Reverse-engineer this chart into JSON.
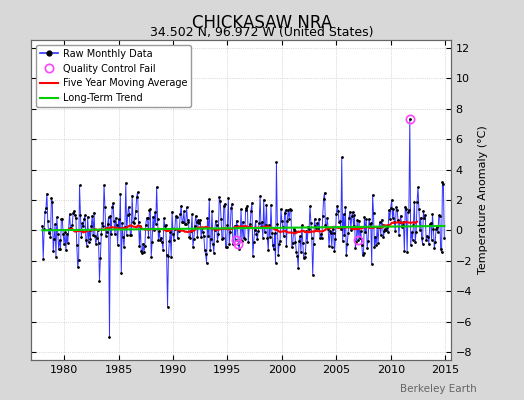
{
  "title": "CHICKASAW NRA",
  "subtitle": "34.502 N, 96.972 W (United States)",
  "ylabel": "Temperature Anomaly (°C)",
  "watermark": "Berkeley Earth",
  "xlim": [
    1977.0,
    2015.5
  ],
  "ylim": [
    -8.5,
    12.5
  ],
  "yticks": [
    -8,
    -6,
    -4,
    -2,
    0,
    2,
    4,
    6,
    8,
    10,
    12
  ],
  "xticks": [
    1980,
    1985,
    1990,
    1995,
    2000,
    2005,
    2010,
    2015
  ],
  "raw_color": "#3333FF",
  "ma_color": "#FF0000",
  "trend_color": "#00CC00",
  "qc_color": "#FF44FF",
  "bg_color": "#D8D8D8",
  "plot_bg": "#FFFFFF",
  "start_year": 1978,
  "end_year": 2014,
  "seed": 17,
  "title_fontsize": 12,
  "subtitle_fontsize": 9,
  "tick_fontsize": 8,
  "ylabel_fontsize": 8
}
